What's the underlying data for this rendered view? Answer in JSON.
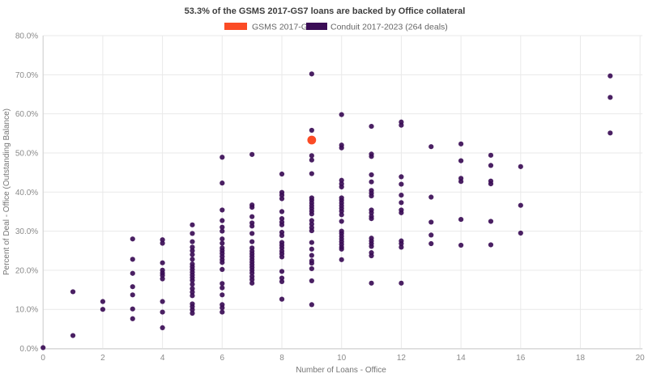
{
  "header": {
    "title": "53.3% of the GSMS 2017-GS7 loans are backed by Office collateral"
  },
  "palette": {
    "gsms_orange": "#fb4b25",
    "conduit_purple": "#3b0d56",
    "gridline": "#e9e9e9",
    "axis_line": "#cfcfcf",
    "tick_text": "#8a8a8a",
    "title_text": "#3d3d3d"
  },
  "chart_data": {
    "type": "scatter",
    "title": "53.3% of the GSMS 2017-GS7 loans are backed by Office collateral",
    "xlabel": "Number of Loans - Office",
    "ylabel": "Percent of Deal - Office (Outstanding Balance)",
    "xlim": [
      0,
      20
    ],
    "ylim": [
      0,
      80
    ],
    "x_ticks": [
      0,
      2,
      4,
      6,
      8,
      10,
      12,
      14,
      16,
      18,
      20
    ],
    "y_ticks": [
      0,
      10,
      20,
      30,
      40,
      50,
      60,
      70,
      80
    ],
    "y_tick_suffix": ".0%",
    "grid": true,
    "legend_position": "top-center",
    "series": [
      {
        "name": "GSMS 2017-GS7",
        "color": "#fb4b25",
        "marker_radius": 5.4,
        "points": [
          [
            9,
            53.3
          ]
        ]
      },
      {
        "name": "Conduit 2017-2023 (264 deals)",
        "color": "#3b0d56",
        "marker_radius": 3.1,
        "points": [
          [
            0,
            0.2
          ],
          [
            1,
            14.5
          ],
          [
            1,
            3.3
          ],
          [
            2,
            12
          ],
          [
            2,
            10
          ],
          [
            3,
            28
          ],
          [
            3,
            22.8
          ],
          [
            3,
            19.2
          ],
          [
            3,
            15.8
          ],
          [
            3,
            13.7
          ],
          [
            3,
            10.1
          ],
          [
            3,
            7.6
          ],
          [
            4,
            27.8
          ],
          [
            4,
            26.9
          ],
          [
            4,
            21.9
          ],
          [
            4,
            20
          ],
          [
            4,
            19.3
          ],
          [
            4,
            18.7
          ],
          [
            4,
            17.8
          ],
          [
            4,
            12
          ],
          [
            4,
            9.3
          ],
          [
            4,
            5.3
          ],
          [
            5,
            31.6
          ],
          [
            5,
            29.4
          ],
          [
            5,
            27.3
          ],
          [
            5,
            25.9
          ],
          [
            5,
            25
          ],
          [
            5,
            24
          ],
          [
            5,
            22.8
          ],
          [
            5,
            21.6
          ],
          [
            5,
            20.9
          ],
          [
            5,
            20.2
          ],
          [
            5,
            19.5
          ],
          [
            5,
            18.8
          ],
          [
            5,
            18.1
          ],
          [
            5,
            17.4
          ],
          [
            5,
            16.4
          ],
          [
            5,
            15.3
          ],
          [
            5,
            14.4
          ],
          [
            5,
            13.5
          ],
          [
            5,
            11.4
          ],
          [
            5,
            10.7
          ],
          [
            5,
            9.9
          ],
          [
            5,
            9
          ],
          [
            6,
            48.9
          ],
          [
            6,
            42.3
          ],
          [
            6,
            35.4
          ],
          [
            6,
            32.7
          ],
          [
            6,
            31
          ],
          [
            6,
            30
          ],
          [
            6,
            28
          ],
          [
            6,
            26.9
          ],
          [
            6,
            25.7
          ],
          [
            6,
            25
          ],
          [
            6,
            24.3
          ],
          [
            6,
            23.5
          ],
          [
            6,
            22.7
          ],
          [
            6,
            22
          ],
          [
            6,
            20.2
          ],
          [
            6,
            16.6
          ],
          [
            6,
            15.5
          ],
          [
            6,
            13.7
          ],
          [
            6,
            11.2
          ],
          [
            6,
            10.4
          ],
          [
            6,
            9.3
          ],
          [
            7,
            49.6
          ],
          [
            7,
            36.7
          ],
          [
            7,
            36.1
          ],
          [
            7,
            33.7
          ],
          [
            7,
            32.1
          ],
          [
            7,
            31.3
          ],
          [
            7,
            29.4
          ],
          [
            7,
            27.3
          ],
          [
            7,
            25.7
          ],
          [
            7,
            24.9
          ],
          [
            7,
            24.2
          ],
          [
            7,
            23.5
          ],
          [
            7,
            22.8
          ],
          [
            7,
            22.1
          ],
          [
            7,
            21.4
          ],
          [
            7,
            20.7
          ],
          [
            7,
            20
          ],
          [
            7,
            19.3
          ],
          [
            7,
            18.4
          ],
          [
            7,
            17.6
          ],
          [
            7,
            16.7
          ],
          [
            8,
            44.6
          ],
          [
            8,
            39.9
          ],
          [
            8,
            39.2
          ],
          [
            8,
            38.3
          ],
          [
            8,
            35
          ],
          [
            8,
            33.2
          ],
          [
            8,
            32.3
          ],
          [
            8,
            31.6
          ],
          [
            8,
            29.7
          ],
          [
            8,
            28.9
          ],
          [
            8,
            27.1
          ],
          [
            8,
            26.4
          ],
          [
            8,
            25.7
          ],
          [
            8,
            24.9
          ],
          [
            8,
            24.2
          ],
          [
            8,
            23.4
          ],
          [
            8,
            19.7
          ],
          [
            8,
            18
          ],
          [
            8,
            17.1
          ],
          [
            8,
            12.6
          ],
          [
            9,
            70.2
          ],
          [
            9,
            55.8
          ],
          [
            9,
            49.3
          ],
          [
            9,
            48.2
          ],
          [
            9,
            44.7
          ],
          [
            9,
            38.5
          ],
          [
            9,
            37.9
          ],
          [
            9,
            37.2
          ],
          [
            9,
            36.5
          ],
          [
            9,
            35.8
          ],
          [
            9,
            35.1
          ],
          [
            9,
            34.4
          ],
          [
            9,
            32.7
          ],
          [
            9,
            31.8
          ],
          [
            9,
            30.9
          ],
          [
            9,
            30.1
          ],
          [
            9,
            27.1
          ],
          [
            9,
            25.4
          ],
          [
            9,
            23.8
          ],
          [
            9,
            22.4
          ],
          [
            9,
            21.8
          ],
          [
            9,
            20.4
          ],
          [
            9,
            17.3
          ],
          [
            9,
            11.2
          ],
          [
            10,
            59.8
          ],
          [
            10,
            52
          ],
          [
            10,
            51.3
          ],
          [
            10,
            43
          ],
          [
            10,
            42.1
          ],
          [
            10,
            41.3
          ],
          [
            10,
            38.5
          ],
          [
            10,
            37.9
          ],
          [
            10,
            37.2
          ],
          [
            10,
            36.5
          ],
          [
            10,
            35.8
          ],
          [
            10,
            35.1
          ],
          [
            10,
            34.2
          ],
          [
            10,
            32.5
          ],
          [
            10,
            30
          ],
          [
            10,
            29.4
          ],
          [
            10,
            28.7
          ],
          [
            10,
            28
          ],
          [
            10,
            27.3
          ],
          [
            10,
            26.6
          ],
          [
            10,
            25.9
          ],
          [
            10,
            25.4
          ],
          [
            10,
            22.7
          ],
          [
            11,
            56.8
          ],
          [
            11,
            49.7
          ],
          [
            11,
            49.1
          ],
          [
            11,
            44.4
          ],
          [
            11,
            42.6
          ],
          [
            11,
            40.4
          ],
          [
            11,
            39.7
          ],
          [
            11,
            39
          ],
          [
            11,
            35.4
          ],
          [
            11,
            34.7
          ],
          [
            11,
            33.8
          ],
          [
            11,
            33.2
          ],
          [
            11,
            28.2
          ],
          [
            11,
            27.5
          ],
          [
            11,
            26.8
          ],
          [
            11,
            26.1
          ],
          [
            11,
            24.5
          ],
          [
            11,
            23.7
          ],
          [
            11,
            16.7
          ],
          [
            12,
            57.9
          ],
          [
            12,
            57.1
          ],
          [
            12,
            43.9
          ],
          [
            12,
            42
          ],
          [
            12,
            39.2
          ],
          [
            12,
            37.3
          ],
          [
            12,
            35.4
          ],
          [
            12,
            34.7
          ],
          [
            12,
            27.5
          ],
          [
            12,
            26.8
          ],
          [
            12,
            25.9
          ],
          [
            12,
            16.7
          ],
          [
            13,
            51.6
          ],
          [
            13,
            38.7
          ],
          [
            13,
            32.3
          ],
          [
            13,
            29
          ],
          [
            13,
            26.8
          ],
          [
            14,
            52.3
          ],
          [
            14,
            48
          ],
          [
            14,
            43.5
          ],
          [
            14,
            42.7
          ],
          [
            14,
            33
          ],
          [
            14,
            26.4
          ],
          [
            15,
            49.4
          ],
          [
            15,
            46.8
          ],
          [
            15,
            42.8
          ],
          [
            15,
            42.1
          ],
          [
            15,
            32.5
          ],
          [
            15,
            26.5
          ],
          [
            16,
            46.5
          ],
          [
            16,
            36.6
          ],
          [
            16,
            29.5
          ],
          [
            19,
            69.7
          ],
          [
            19,
            64.2
          ],
          [
            19,
            55.1
          ]
        ]
      }
    ]
  }
}
